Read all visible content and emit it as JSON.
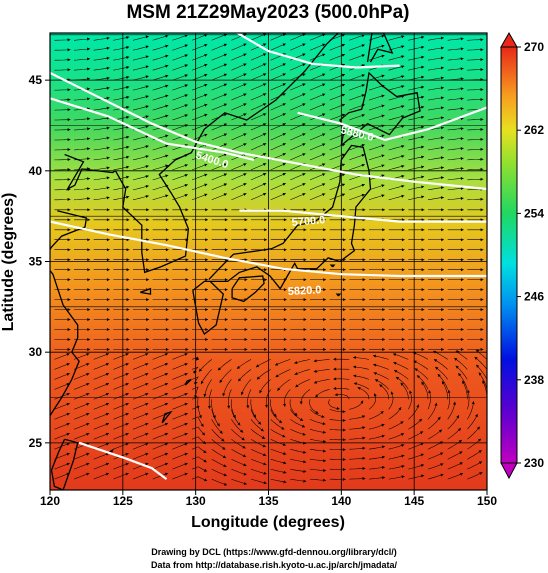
{
  "title": "MSM 21Z29May2023 (500.0hPa)",
  "xlabel": "Longitude (degrees)",
  "ylabel": "Latitude  (degrees)",
  "x_ticks": [
    "120",
    "125",
    "130",
    "135",
    "140",
    "145",
    "150"
  ],
  "y_ticks": [
    "25",
    "30",
    "35",
    "40",
    "45"
  ],
  "colorbar_ticks": [
    "270",
    "262",
    "254",
    "246",
    "238",
    "230"
  ],
  "contour_labels": [
    "5400.0",
    "5700.0",
    "5820.0",
    "5880.0"
  ],
  "footer": {
    "line1": "Drawing by DCL (https://www.gfd-dennou.org/library/dcl/)",
    "line2": "Data from http://database.rish.kyoto-u.ac.jp/arch/jmadata/"
  },
  "map": {
    "lon_range": [
      120,
      150
    ],
    "lat_range": [
      22.4,
      47.6
    ],
    "field": "temperature (K)",
    "colorbar_range": [
      230,
      270
    ],
    "colors": {
      "warm": "#e8401a",
      "mid": "#f0a020",
      "cool": "#30d070",
      "cold": "#00e0a0"
    }
  }
}
